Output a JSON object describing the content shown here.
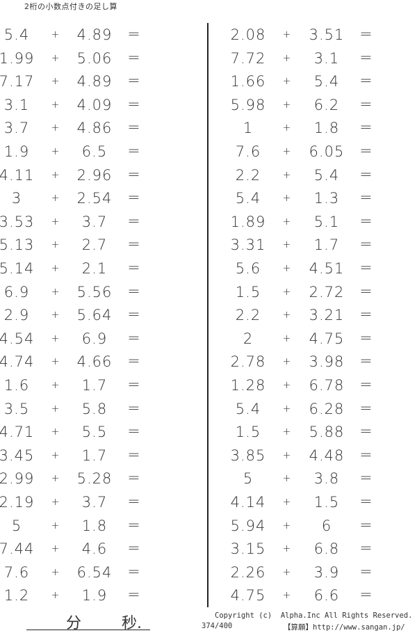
{
  "title": "2桁の小数点付きの足し算",
  "operator": "+",
  "equals": "=",
  "left_problems": [
    [
      "5.4",
      "4.89"
    ],
    [
      "1.99",
      "5.06"
    ],
    [
      "7.17",
      "4.89"
    ],
    [
      "3.1",
      "4.09"
    ],
    [
      "3.7",
      "4.86"
    ],
    [
      "1.9",
      "6.5"
    ],
    [
      "4.11",
      "2.96"
    ],
    [
      "3",
      "2.54"
    ],
    [
      "3.53",
      "3.7"
    ],
    [
      "5.13",
      "2.7"
    ],
    [
      "5.14",
      "2.1"
    ],
    [
      "6.9",
      "5.56"
    ],
    [
      "2.9",
      "5.64"
    ],
    [
      "4.54",
      "6.9"
    ],
    [
      "4.74",
      "4.66"
    ],
    [
      "1.6",
      "1.7"
    ],
    [
      "3.5",
      "5.8"
    ],
    [
      "4.71",
      "5.5"
    ],
    [
      "3.45",
      "1.7"
    ],
    [
      "2.99",
      "5.28"
    ],
    [
      "2.19",
      "3.7"
    ],
    [
      "5",
      "1.8"
    ],
    [
      "7.44",
      "4.6"
    ],
    [
      "7.6",
      "6.54"
    ],
    [
      "1.2",
      "1.9"
    ]
  ],
  "right_problems": [
    [
      "2.08",
      "3.51"
    ],
    [
      "7.72",
      "3.1"
    ],
    [
      "1.66",
      "5.4"
    ],
    [
      "5.98",
      "6.2"
    ],
    [
      "1",
      "1.8"
    ],
    [
      "7.6",
      "6.05"
    ],
    [
      "2.2",
      "5.4"
    ],
    [
      "5.4",
      "1.3"
    ],
    [
      "1.89",
      "5.1"
    ],
    [
      "3.31",
      "1.7"
    ],
    [
      "5.6",
      "4.51"
    ],
    [
      "1.5",
      "2.72"
    ],
    [
      "2.2",
      "3.21"
    ],
    [
      "2",
      "4.75"
    ],
    [
      "2.78",
      "3.98"
    ],
    [
      "1.28",
      "6.78"
    ],
    [
      "5.4",
      "6.28"
    ],
    [
      "1.5",
      "5.88"
    ],
    [
      "3.85",
      "4.48"
    ],
    [
      "5",
      "3.8"
    ],
    [
      "4.14",
      "1.5"
    ],
    [
      "5.94",
      "6"
    ],
    [
      "3.15",
      "6.8"
    ],
    [
      "2.26",
      "3.9"
    ],
    [
      "4.75",
      "6.6"
    ]
  ],
  "footer": {
    "minutes_label": "分",
    "seconds_label": "秒.",
    "copyright": "Copyright (c)  Alpha.Inc All Rights Reserved.",
    "page": "374/400",
    "site": "【算願】http://www.sangan.jp/"
  }
}
